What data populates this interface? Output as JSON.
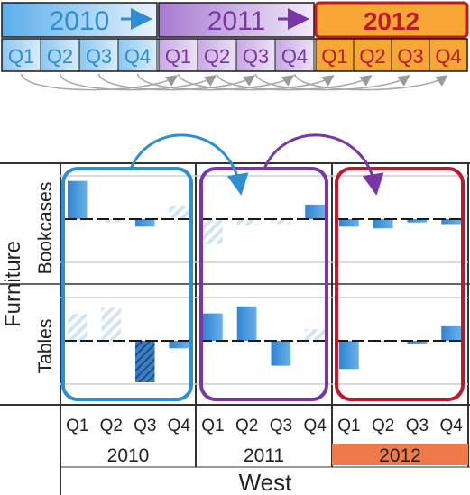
{
  "timeline": {
    "years": [
      {
        "label": "2010",
        "color": "#2b8fd6",
        "highlight": false
      },
      {
        "label": "2011",
        "color": "#7a35a8",
        "highlight": false
      },
      {
        "label": "2012",
        "color": "#c0172b",
        "highlight": true,
        "fill": "#f7a733"
      }
    ],
    "quarters": [
      "Q1",
      "Q2",
      "Q3",
      "Q4"
    ]
  },
  "colors": {
    "blue": "#2b8fd6",
    "purple": "#7a35a8",
    "red": "#c0172b",
    "orange": "#f7a733",
    "bar": "#3d8fd8",
    "year_2012_band": "#f07a4a",
    "grid": "#999999",
    "axis": "#333333"
  },
  "chart_data": {
    "type": "bar",
    "category": "Furniture",
    "region": "West",
    "years": [
      "2010",
      "2011",
      "2012"
    ],
    "quarters": [
      "Q1",
      "Q2",
      "Q3",
      "Q4"
    ],
    "rows": [
      {
        "label": "Bookcases",
        "ylim": [
          -1,
          1
        ],
        "values": [
          0.92,
          -0.08,
          -0.18,
          0.32,
          -0.6,
          -0.15,
          -0.12,
          0.35,
          -0.18,
          -0.22,
          -0.08,
          -0.12
        ],
        "hatched": [
          false,
          true,
          false,
          true,
          true,
          true,
          true,
          false,
          false,
          false,
          false,
          false
        ]
      },
      {
        "label": "Tables",
        "ylim": [
          -1,
          1
        ],
        "values": [
          0.65,
          0.8,
          -1.0,
          -0.18,
          0.66,
          0.83,
          -0.6,
          0.28,
          -0.68,
          0,
          -0.08,
          0.35
        ],
        "hatched": [
          true,
          true,
          true,
          false,
          false,
          false,
          false,
          true,
          false,
          false,
          false,
          false
        ]
      }
    ]
  }
}
